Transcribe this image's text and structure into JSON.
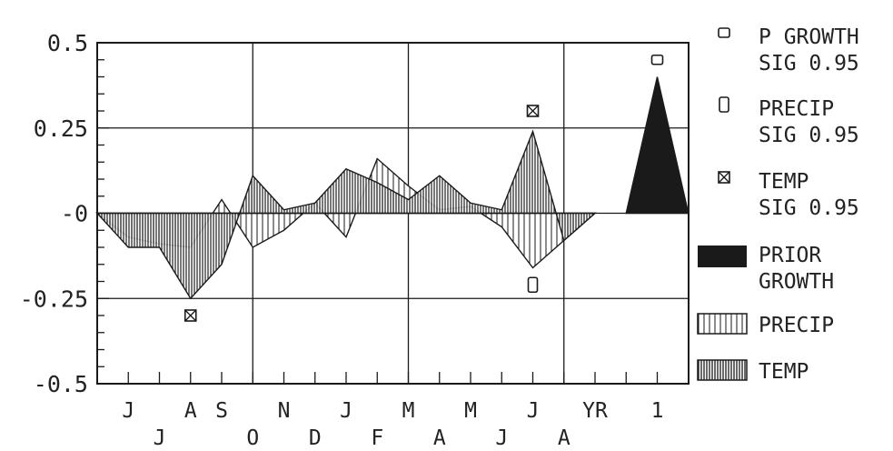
{
  "chart_data": {
    "type": "line",
    "title": "",
    "xlabel": "",
    "ylabel": "",
    "ylim": [
      -0.5,
      0.5
    ],
    "y_ticks": [
      {
        "value": 0.5,
        "label": "0.5"
      },
      {
        "value": 0.25,
        "label": "0.25"
      },
      {
        "value": 0,
        "label": "-0"
      },
      {
        "value": -0.25,
        "label": "-0.25"
      },
      {
        "value": -0.5,
        "label": "-0.5"
      }
    ],
    "x_tick_labels": [
      {
        "index": 1,
        "label": "J",
        "row": 1
      },
      {
        "index": 2,
        "label": "J",
        "row": 2
      },
      {
        "index": 3,
        "label": "A",
        "row": 1
      },
      {
        "index": 4,
        "label": "S",
        "row": 1
      },
      {
        "index": 5,
        "label": "O",
        "row": 2
      },
      {
        "index": 6,
        "label": "N",
        "row": 1
      },
      {
        "index": 7,
        "label": "D",
        "row": 2
      },
      {
        "index": 8,
        "label": "J",
        "row": 1
      },
      {
        "index": 9,
        "label": "F",
        "row": 2
      },
      {
        "index": 10,
        "label": "M",
        "row": 1
      },
      {
        "index": 11,
        "label": "A",
        "row": 2
      },
      {
        "index": 12,
        "label": "M",
        "row": 1
      },
      {
        "index": 13,
        "label": "J",
        "row": 2
      },
      {
        "index": 14,
        "label": "J",
        "row": 1
      },
      {
        "index": 15,
        "label": "A",
        "row": 2
      },
      {
        "index": 16,
        "label": "YR",
        "row": 1
      },
      {
        "index": 18,
        "label": "1",
        "row": 1
      }
    ],
    "series": [
      {
        "name": "PRECIP",
        "x": [
          0,
          1,
          2,
          3,
          4,
          5,
          6,
          7,
          8,
          9,
          10,
          11,
          12,
          13,
          14,
          15,
          16
        ],
        "values": [
          0,
          -0.07,
          -0.09,
          -0.1,
          0.04,
          -0.1,
          -0.05,
          0.03,
          -0.07,
          0.16,
          0.08,
          0.01,
          0.02,
          -0.04,
          -0.16,
          -0.08,
          0
        ]
      },
      {
        "name": "TEMP",
        "x": [
          0,
          1,
          2,
          3,
          4,
          5,
          6,
          7,
          8,
          9,
          10,
          11,
          12,
          13,
          14,
          15,
          16
        ],
        "values": [
          0,
          -0.1,
          -0.1,
          -0.25,
          -0.15,
          0.11,
          0.01,
          0.03,
          0.13,
          0.09,
          0.04,
          0.11,
          0.03,
          0.01,
          0.24,
          -0.08,
          0
        ]
      },
      {
        "name": "PRIOR GROWTH",
        "x": [
          17,
          18,
          19
        ],
        "values": [
          0,
          0.4,
          0
        ]
      }
    ],
    "markers": [
      {
        "type": "temp_sig",
        "x": 3,
        "y": -0.3
      },
      {
        "type": "temp_sig",
        "x": 14,
        "y": 0.3
      },
      {
        "type": "precip_sig",
        "x": 14,
        "y": -0.21
      },
      {
        "type": "growth_sig",
        "x": 18,
        "y": 0.45
      }
    ],
    "legend_position": "right",
    "legend": [
      {
        "key": "growth_sig",
        "lines": [
          "P GROWTH",
          "SIG 0.95"
        ]
      },
      {
        "key": "precip_sig",
        "lines": [
          "PRECIP",
          "SIG 0.95"
        ]
      },
      {
        "key": "temp_sig",
        "lines": [
          "TEMP",
          "SIG 0.95"
        ]
      },
      {
        "key": "prior",
        "lines": [
          "PRIOR",
          "GROWTH"
        ]
      },
      {
        "key": "precip",
        "lines": [
          "PRECIP"
        ]
      },
      {
        "key": "temp",
        "lines": [
          "TEMP"
        ]
      }
    ],
    "grid": true,
    "colors": {
      "ink": "#1a1a1a",
      "background": "#ffffff"
    }
  }
}
